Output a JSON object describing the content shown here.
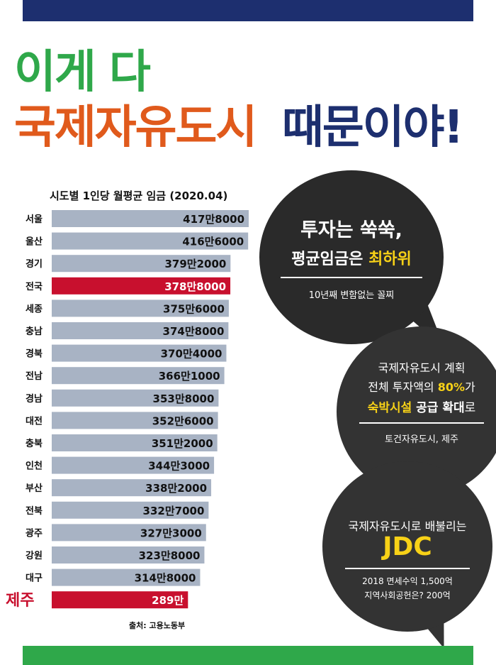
{
  "headline": {
    "line1": "이게 다",
    "line2a": "국제자유도시",
    "line2b": "때문이야!"
  },
  "chart_data": {
    "type": "bar",
    "orientation": "horizontal",
    "title": "시도별 1인당 월평균 임금 (2020.04)",
    "categories": [
      "서울",
      "울산",
      "경기",
      "전국",
      "세종",
      "충남",
      "경북",
      "전남",
      "경남",
      "대전",
      "충북",
      "인천",
      "부산",
      "전북",
      "광주",
      "강원",
      "대구",
      "제주"
    ],
    "value_labels": [
      "417만8000",
      "416만6000",
      "379만2000",
      "378만8000",
      "375만6000",
      "374만8000",
      "370만4000",
      "366만1000",
      "353만8000",
      "352만6000",
      "351만2000",
      "344만3000",
      "338만2000",
      "332만7000",
      "327만3000",
      "323만8000",
      "314만8000",
      "289만"
    ],
    "values": [
      4178000,
      4166000,
      3792000,
      3788000,
      3756000,
      3748000,
      3704000,
      3661000,
      3538000,
      3526000,
      3512000,
      3443000,
      3382000,
      3327000,
      3273000,
      3238000,
      3148000,
      2890000
    ],
    "highlighted": [
      "전국",
      "제주"
    ],
    "colors": {
      "bar": "#a8b3c4",
      "highlight": "#c8102e"
    },
    "source": "출처: 고용노동부"
  },
  "bubbles": {
    "b1": {
      "line1": "투자는 쑥쑥,",
      "line2_pre": "평균임금은 ",
      "line2_hl": "최하위",
      "sub": "10년째 변함없는 꼴찌"
    },
    "b2": {
      "line1": "국제자유도시 계획",
      "line2_pre": "전체 투자액의 ",
      "line2_hl": "80%",
      "line2_post": "가",
      "line3_hl": "숙박시설",
      "line3_mid": " 공급 ",
      "line3_b": "확대",
      "line3_post": "로",
      "sub": "토건자유도시, 제주"
    },
    "b3": {
      "line1": "국제자유도시로 배불리는",
      "big": "JDC",
      "sub1": "2018 면세수익 1,500억",
      "sub2": "지역사회공헌은? 200억"
    }
  },
  "colors": {
    "navy": "#1d2f6f",
    "green": "#2fa84a",
    "orange": "#e05a1c",
    "yellow": "#f7d117",
    "red": "#c8102e"
  }
}
